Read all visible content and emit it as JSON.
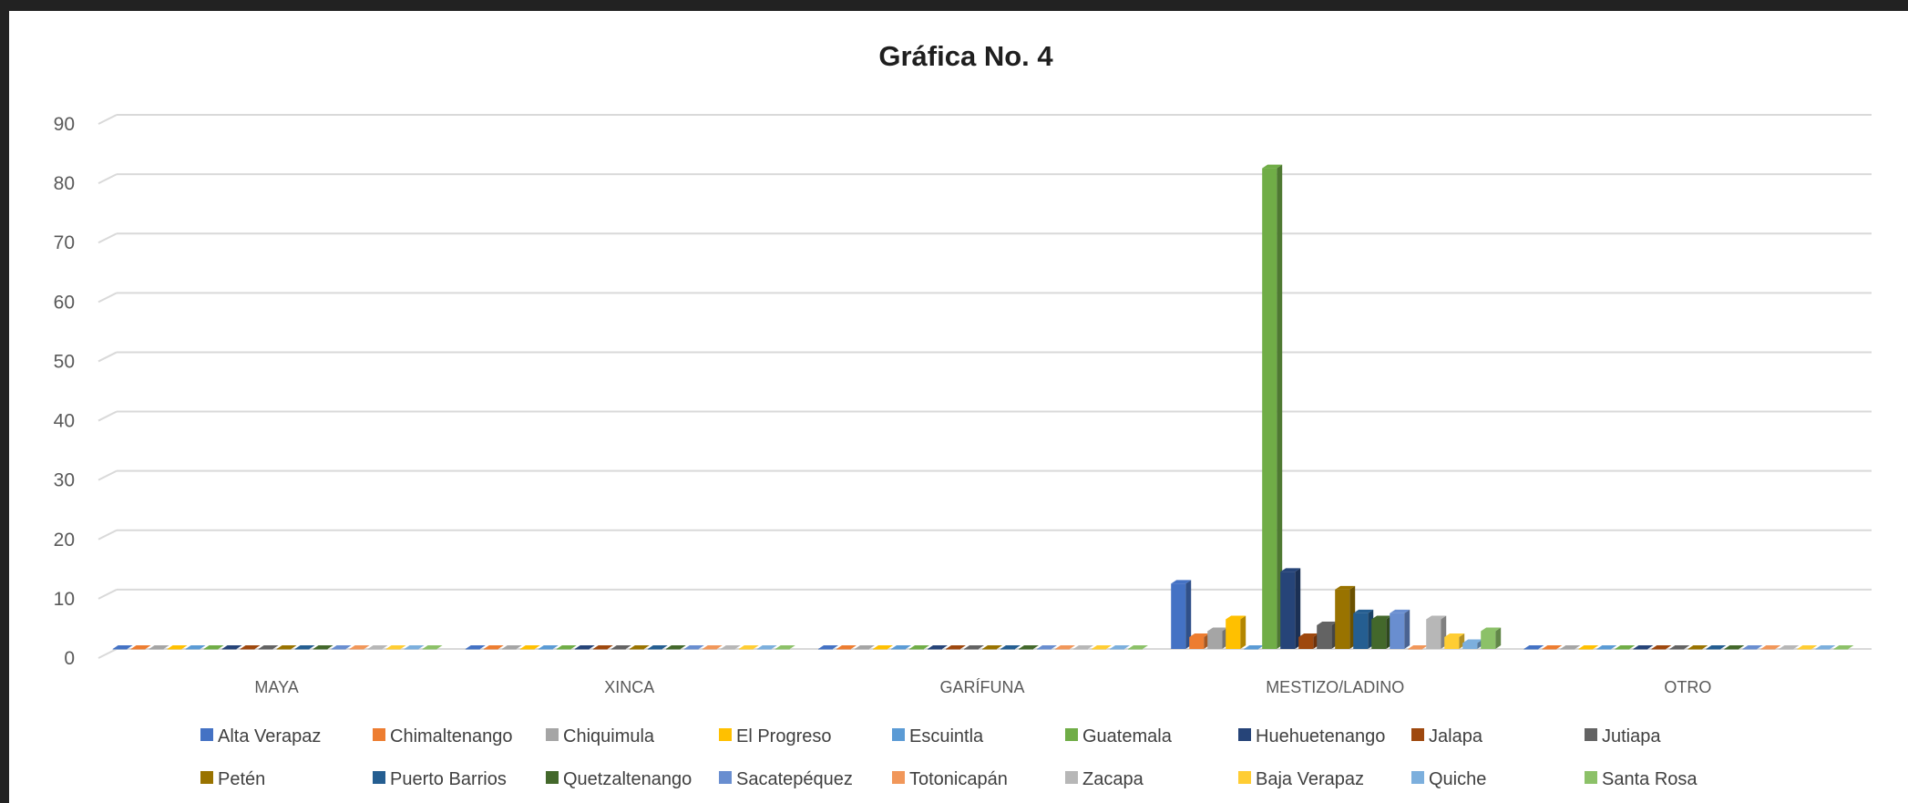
{
  "chart_data": {
    "type": "bar",
    "title": "Gráfica No. 4",
    "xlabel": "",
    "ylabel": "",
    "ylim": [
      0,
      90
    ],
    "yticks": [
      0,
      10,
      20,
      30,
      40,
      50,
      60,
      70,
      80,
      90
    ],
    "grid": true,
    "legend_position": "bottom",
    "categories": [
      "MAYA",
      "XINCA",
      "GARÍFUNA",
      "MESTIZO/LADINO",
      "OTRO"
    ],
    "series": [
      {
        "name": "Alta Verapaz",
        "color": "#4472c4",
        "values": [
          0,
          0,
          0,
          11,
          0
        ]
      },
      {
        "name": "Chimaltenango",
        "color": "#ed7d31",
        "values": [
          0,
          0,
          0,
          2,
          0
        ]
      },
      {
        "name": "Chiquimula",
        "color": "#a5a5a5",
        "values": [
          0,
          0,
          0,
          3,
          0
        ]
      },
      {
        "name": "El Progreso",
        "color": "#ffc000",
        "values": [
          0,
          0,
          0,
          5,
          0
        ]
      },
      {
        "name": "Escuintla",
        "color": "#5b9bd5",
        "values": [
          0,
          0,
          0,
          0,
          0
        ]
      },
      {
        "name": "Guatemala",
        "color": "#70ad47",
        "values": [
          0,
          0,
          0,
          81,
          0
        ]
      },
      {
        "name": "Huehuetenango",
        "color": "#264478",
        "values": [
          0,
          0,
          0,
          13,
          0
        ]
      },
      {
        "name": "Jalapa",
        "color": "#9e480e",
        "values": [
          0,
          0,
          0,
          2,
          0
        ]
      },
      {
        "name": "Jutiapa",
        "color": "#636363",
        "values": [
          0,
          0,
          0,
          4,
          0
        ]
      },
      {
        "name": "Petén",
        "color": "#997300",
        "values": [
          0,
          0,
          0,
          10,
          0
        ]
      },
      {
        "name": "Puerto Barrios",
        "color": "#255e91",
        "values": [
          0,
          0,
          0,
          6,
          0
        ]
      },
      {
        "name": "Quetzaltenango",
        "color": "#43682b",
        "values": [
          0,
          0,
          0,
          5,
          0
        ]
      },
      {
        "name": "Sacatepéquez",
        "color": "#698ed0",
        "values": [
          0,
          0,
          0,
          6,
          0
        ]
      },
      {
        "name": "Totonicapán",
        "color": "#f1975a",
        "values": [
          0,
          0,
          0,
          0,
          0
        ]
      },
      {
        "name": "Zacapa",
        "color": "#b7b7b7",
        "values": [
          0,
          0,
          0,
          5,
          0
        ]
      },
      {
        "name": "Baja Verapaz",
        "color": "#ffcd33",
        "values": [
          0,
          0,
          0,
          2,
          0
        ]
      },
      {
        "name": "Quiche",
        "color": "#7cafdd",
        "values": [
          0,
          0,
          0,
          1,
          0
        ]
      },
      {
        "name": "Santa Rosa",
        "color": "#8cc168",
        "values": [
          0,
          0,
          0,
          3,
          0
        ]
      }
    ]
  }
}
